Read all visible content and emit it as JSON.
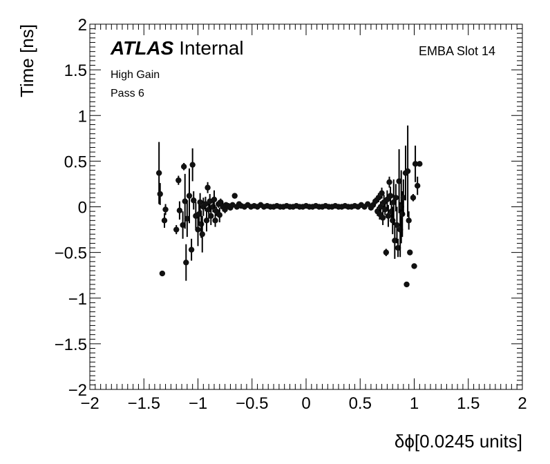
{
  "chart_data": {
    "type": "scatter",
    "xlabel": "δϕ[0.0245 units]",
    "ylabel": "Time [ns]",
    "xlim": [
      -2,
      2
    ],
    "ylim": [
      -2,
      2
    ],
    "x_ticks": [
      "−2",
      "−1.5",
      "−1",
      "−0.5",
      "0",
      "0.5",
      "1",
      "1.5",
      "2"
    ],
    "y_ticks": [
      "−2",
      "−1.5",
      "−1",
      "−0.5",
      "0",
      "0.5",
      "1",
      "1.5",
      "2"
    ],
    "atlas_label": "ATLAS",
    "atlas_status": "Internal",
    "annotations": [
      "High Gain",
      "Pass 6"
    ],
    "top_right_label": "EMBA Slot 14",
    "grid": false,
    "error_bars": true,
    "points": [
      {
        "x": -1.36,
        "y": 0.37,
        "err": 0.34
      },
      {
        "x": -1.35,
        "y": 0.14,
        "err": 0.12
      },
      {
        "x": -1.33,
        "y": -0.73,
        "err": 0.02
      },
      {
        "x": -1.31,
        "y": -0.15,
        "err": 0.08
      },
      {
        "x": -1.3,
        "y": -0.03,
        "err": 0.06
      },
      {
        "x": -1.2,
        "y": -0.25,
        "err": 0.05
      },
      {
        "x": -1.18,
        "y": 0.29,
        "err": 0.05
      },
      {
        "x": -1.17,
        "y": -0.04,
        "err": 0.1
      },
      {
        "x": -1.14,
        "y": -0.2,
        "err": 0.15
      },
      {
        "x": -1.13,
        "y": 0.44,
        "err": 0.04
      },
      {
        "x": -1.12,
        "y": 0.06,
        "err": 0.3
      },
      {
        "x": -1.11,
        "y": -0.61,
        "err": 0.2
      },
      {
        "x": -1.1,
        "y": -0.13,
        "err": 0.2
      },
      {
        "x": -1.08,
        "y": 0.12,
        "err": 0.3
      },
      {
        "x": -1.06,
        "y": -0.47,
        "err": 0.12
      },
      {
        "x": -1.05,
        "y": 0.46,
        "err": 0.18
      },
      {
        "x": -1.04,
        "y": 0.07,
        "err": 0.1
      },
      {
        "x": -1.02,
        "y": -0.1,
        "err": 0.15
      },
      {
        "x": -1.0,
        "y": -0.25,
        "err": 0.18
      },
      {
        "x": -0.99,
        "y": -0.08,
        "err": 0.12
      },
      {
        "x": -0.98,
        "y": 0.05,
        "err": 0.1
      },
      {
        "x": -0.97,
        "y": -0.19,
        "err": 0.15
      },
      {
        "x": -0.96,
        "y": -0.3,
        "err": 0.2
      },
      {
        "x": -0.95,
        "y": 0.0,
        "err": 0.1
      },
      {
        "x": -0.93,
        "y": 0.03,
        "err": 0.08
      },
      {
        "x": -0.92,
        "y": -0.15,
        "err": 0.12
      },
      {
        "x": -0.91,
        "y": 0.21,
        "err": 0.06
      },
      {
        "x": -0.9,
        "y": -0.03,
        "err": 0.1
      },
      {
        "x": -0.89,
        "y": 0.06,
        "err": 0.08
      },
      {
        "x": -0.88,
        "y": -0.1,
        "err": 0.1
      },
      {
        "x": -0.86,
        "y": 0.0,
        "err": 0.06
      },
      {
        "x": -0.85,
        "y": 0.08,
        "err": 0.1
      },
      {
        "x": -0.84,
        "y": -0.15,
        "err": 0.07
      },
      {
        "x": -0.83,
        "y": -0.05,
        "err": 0.05
      },
      {
        "x": -0.81,
        "y": 0.03,
        "err": 0.04
      },
      {
        "x": -0.8,
        "y": -0.09,
        "err": 0.08
      },
      {
        "x": -0.79,
        "y": 0.05,
        "err": 0.04
      },
      {
        "x": -0.77,
        "y": 0.0,
        "err": 0.05
      },
      {
        "x": -0.75,
        "y": -0.03,
        "err": 0.04
      },
      {
        "x": -0.74,
        "y": 0.02,
        "err": 0.03
      },
      {
        "x": -0.72,
        "y": 0.01,
        "err": 0.03
      },
      {
        "x": -0.7,
        "y": -0.01,
        "err": 0.03
      },
      {
        "x": -0.68,
        "y": 0.02,
        "err": 0.02
      },
      {
        "x": -0.66,
        "y": 0.12,
        "err": 0.02
      },
      {
        "x": -0.64,
        "y": 0.0,
        "err": 0.02
      },
      {
        "x": -0.62,
        "y": 0.03,
        "err": 0.02
      },
      {
        "x": -0.6,
        "y": 0.01,
        "err": 0.02
      },
      {
        "x": -0.57,
        "y": 0.0,
        "err": 0.02
      },
      {
        "x": -0.54,
        "y": 0.02,
        "err": 0.02
      },
      {
        "x": -0.51,
        "y": 0.0,
        "err": 0.02
      },
      {
        "x": -0.48,
        "y": 0.01,
        "err": 0.01
      },
      {
        "x": -0.45,
        "y": 0.0,
        "err": 0.01
      },
      {
        "x": -0.42,
        "y": 0.02,
        "err": 0.01
      },
      {
        "x": -0.39,
        "y": 0.0,
        "err": 0.01
      },
      {
        "x": -0.36,
        "y": 0.01,
        "err": 0.01
      },
      {
        "x": -0.33,
        "y": 0.0,
        "err": 0.01
      },
      {
        "x": -0.3,
        "y": 0.0,
        "err": 0.01
      },
      {
        "x": -0.27,
        "y": 0.01,
        "err": 0.01
      },
      {
        "x": -0.24,
        "y": 0.0,
        "err": 0.01
      },
      {
        "x": -0.21,
        "y": 0.0,
        "err": 0.01
      },
      {
        "x": -0.18,
        "y": 0.01,
        "err": 0.01
      },
      {
        "x": -0.15,
        "y": 0.0,
        "err": 0.01
      },
      {
        "x": -0.12,
        "y": 0.0,
        "err": 0.01
      },
      {
        "x": -0.09,
        "y": 0.01,
        "err": 0.01
      },
      {
        "x": -0.06,
        "y": 0.0,
        "err": 0.01
      },
      {
        "x": -0.03,
        "y": 0.0,
        "err": 0.01
      },
      {
        "x": 0.0,
        "y": 0.01,
        "err": 0.01
      },
      {
        "x": 0.03,
        "y": 0.0,
        "err": 0.01
      },
      {
        "x": 0.06,
        "y": 0.0,
        "err": 0.01
      },
      {
        "x": 0.09,
        "y": 0.01,
        "err": 0.01
      },
      {
        "x": 0.12,
        "y": 0.0,
        "err": 0.01
      },
      {
        "x": 0.15,
        "y": 0.0,
        "err": 0.01
      },
      {
        "x": 0.18,
        "y": 0.01,
        "err": 0.01
      },
      {
        "x": 0.21,
        "y": 0.0,
        "err": 0.01
      },
      {
        "x": 0.24,
        "y": 0.0,
        "err": 0.01
      },
      {
        "x": 0.27,
        "y": 0.01,
        "err": 0.01
      },
      {
        "x": 0.3,
        "y": 0.0,
        "err": 0.01
      },
      {
        "x": 0.33,
        "y": 0.0,
        "err": 0.01
      },
      {
        "x": 0.36,
        "y": 0.01,
        "err": 0.01
      },
      {
        "x": 0.39,
        "y": 0.0,
        "err": 0.01
      },
      {
        "x": 0.42,
        "y": 0.0,
        "err": 0.01
      },
      {
        "x": 0.45,
        "y": 0.01,
        "err": 0.02
      },
      {
        "x": 0.48,
        "y": 0.0,
        "err": 0.02
      },
      {
        "x": 0.51,
        "y": 0.02,
        "err": 0.02
      },
      {
        "x": 0.54,
        "y": 0.0,
        "err": 0.02
      },
      {
        "x": 0.57,
        "y": 0.03,
        "err": 0.02
      },
      {
        "x": 0.6,
        "y": -0.01,
        "err": 0.03
      },
      {
        "x": 0.62,
        "y": 0.02,
        "err": 0.03
      },
      {
        "x": 0.64,
        "y": 0.06,
        "err": 0.04
      },
      {
        "x": 0.66,
        "y": -0.05,
        "err": 0.05
      },
      {
        "x": 0.67,
        "y": 0.1,
        "err": 0.05
      },
      {
        "x": 0.68,
        "y": -0.08,
        "err": 0.06
      },
      {
        "x": 0.69,
        "y": 0.0,
        "err": 0.06
      },
      {
        "x": 0.7,
        "y": 0.15,
        "err": 0.06
      },
      {
        "x": 0.71,
        "y": -0.12,
        "err": 0.08
      },
      {
        "x": 0.72,
        "y": 0.05,
        "err": 0.08
      },
      {
        "x": 0.73,
        "y": -0.03,
        "err": 0.06
      },
      {
        "x": 0.74,
        "y": -0.5,
        "err": 0.04
      },
      {
        "x": 0.75,
        "y": 0.08,
        "err": 0.1
      },
      {
        "x": 0.76,
        "y": -0.1,
        "err": 0.12
      },
      {
        "x": 0.77,
        "y": 0.27,
        "err": 0.06
      },
      {
        "x": 0.78,
        "y": 0.12,
        "err": 0.1
      },
      {
        "x": 0.79,
        "y": -0.05,
        "err": 0.08
      },
      {
        "x": 0.8,
        "y": -0.15,
        "err": 0.15
      },
      {
        "x": 0.81,
        "y": 0.05,
        "err": 0.25
      },
      {
        "x": 0.82,
        "y": -0.37,
        "err": 0.2
      },
      {
        "x": 0.83,
        "y": 0.1,
        "err": 0.15
      },
      {
        "x": 0.84,
        "y": -0.2,
        "err": 0.2
      },
      {
        "x": 0.85,
        "y": -0.45,
        "err": 0.1
      },
      {
        "x": 0.86,
        "y": 0.28,
        "err": 0.35
      },
      {
        "x": 0.87,
        "y": -0.25,
        "err": 0.3
      },
      {
        "x": 0.88,
        "y": 0.0,
        "err": 0.4
      },
      {
        "x": 0.89,
        "y": -0.08,
        "err": 0.25
      },
      {
        "x": 0.9,
        "y": 0.1,
        "err": 0.2
      },
      {
        "x": 0.92,
        "y": 0.37,
        "err": 0.3
      },
      {
        "x": 0.93,
        "y": -0.85,
        "err": 0.02
      },
      {
        "x": 0.94,
        "y": 0.39,
        "err": 0.5
      },
      {
        "x": 0.95,
        "y": -0.15,
        "err": 0.1
      },
      {
        "x": 0.96,
        "y": -0.5,
        "err": 0.03
      },
      {
        "x": 0.99,
        "y": 0.1,
        "err": 0.04
      },
      {
        "x": 1.0,
        "y": -0.65,
        "err": 0.02
      },
      {
        "x": 1.01,
        "y": 0.47,
        "err": 0.2
      },
      {
        "x": 1.03,
        "y": 0.23,
        "err": 0.1
      },
      {
        "x": 1.05,
        "y": 0.47,
        "err": 0.02
      }
    ]
  }
}
